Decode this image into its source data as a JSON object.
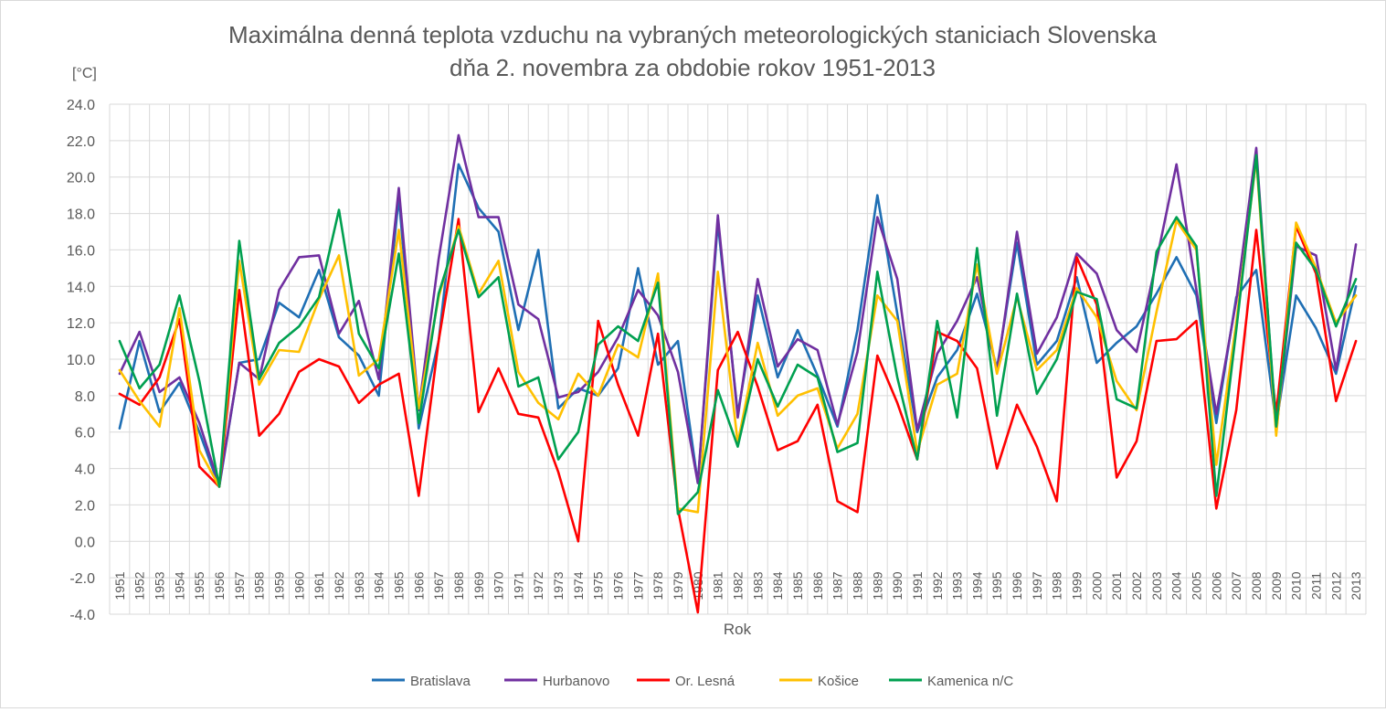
{
  "chart_data": {
    "type": "line",
    "title_line1": "Maximálna denná teplota vzduchu na vybraných meteorologických staniciach Slovenska",
    "title_line2": "dňa 2. novembra za obdobie rokov 1951-2013",
    "ylabel": "[°C]",
    "xlabel": "Rok",
    "ylim": [
      -4.0,
      24.0
    ],
    "ytick_step": 2.0,
    "grid": true,
    "legend_position": "bottom",
    "x": [
      1951,
      1952,
      1953,
      1954,
      1955,
      1956,
      1957,
      1958,
      1959,
      1960,
      1961,
      1962,
      1963,
      1964,
      1965,
      1966,
      1967,
      1968,
      1969,
      1970,
      1971,
      1972,
      1973,
      1974,
      1975,
      1976,
      1977,
      1978,
      1979,
      1980,
      1981,
      1982,
      1983,
      1984,
      1985,
      1986,
      1987,
      1988,
      1989,
      1990,
      1991,
      1992,
      1993,
      1994,
      1995,
      1996,
      1997,
      1998,
      1999,
      2000,
      2001,
      2002,
      2003,
      2004,
      2005,
      2006,
      2007,
      2008,
      2009,
      2010,
      2011,
      2012,
      2013
    ],
    "series": [
      {
        "name": "Bratislava",
        "color": "#1f6fb4",
        "values": [
          6.2,
          11.0,
          7.1,
          8.7,
          6.0,
          3.0,
          9.8,
          10.0,
          13.1,
          12.3,
          14.9,
          11.2,
          10.2,
          8.0,
          18.9,
          6.2,
          11.0,
          20.7,
          18.3,
          17.0,
          11.6,
          16.0,
          7.3,
          8.4,
          8.0,
          9.5,
          15.0,
          9.7,
          11.0,
          3.2,
          17.5,
          7.0,
          13.5,
          9.0,
          11.6,
          9.1,
          6.3,
          11.6,
          19.0,
          12.5,
          6.0,
          9.0,
          10.5,
          13.6,
          9.5,
          16.4,
          9.7,
          11.0,
          14.5,
          9.8,
          10.9,
          11.8,
          13.6,
          15.6,
          13.5,
          6.5,
          13.4,
          14.9,
          6.4,
          13.5,
          11.7,
          9.2,
          14.0
        ]
      },
      {
        "name": "Hurbanovo",
        "color": "#7030a0",
        "values": [
          9.2,
          11.5,
          8.2,
          9.0,
          6.5,
          3.1,
          9.8,
          8.9,
          13.8,
          15.6,
          15.7,
          11.4,
          13.2,
          8.9,
          19.4,
          7.2,
          15.5,
          22.3,
          17.8,
          17.8,
          13.0,
          12.2,
          7.9,
          8.2,
          9.3,
          11.2,
          13.8,
          12.4,
          9.3,
          3.2,
          17.9,
          6.8,
          14.4,
          9.6,
          11.1,
          10.5,
          6.4,
          10.4,
          17.8,
          14.4,
          6.1,
          10.3,
          12.1,
          14.5,
          9.3,
          17.0,
          10.3,
          12.3,
          15.8,
          14.7,
          11.6,
          10.4,
          15.4,
          20.7,
          13.8,
          7.0,
          13.2,
          21.6,
          6.0,
          16.2,
          15.7,
          9.4,
          16.3
        ]
      },
      {
        "name": "Or. Lesná",
        "color": "#ff0000",
        "values": [
          8.1,
          7.5,
          9.0,
          12.2,
          4.1,
          3.0,
          13.8,
          5.8,
          7.0,
          9.3,
          10.0,
          9.6,
          7.6,
          8.6,
          9.2,
          2.5,
          11.0,
          17.7,
          7.1,
          9.5,
          7.0,
          6.8,
          3.8,
          0.0,
          12.1,
          8.6,
          5.8,
          11.4,
          1.8,
          -3.9,
          9.4,
          11.5,
          8.5,
          5.0,
          5.5,
          7.5,
          2.2,
          1.6,
          10.2,
          7.6,
          4.5,
          11.5,
          11.0,
          9.5,
          4.0,
          7.5,
          5.2,
          2.2,
          15.6,
          13.0,
          3.5,
          5.5,
          11.0,
          11.1,
          12.1,
          1.8,
          7.2,
          17.1,
          7.0,
          17.3,
          14.7,
          7.7,
          11.0
        ]
      },
      {
        "name": "Košice",
        "color": "#ffc000",
        "values": [
          9.4,
          7.7,
          6.3,
          12.8,
          5.0,
          3.0,
          15.4,
          8.6,
          10.5,
          10.4,
          13.3,
          15.7,
          9.1,
          10.0,
          17.1,
          7.3,
          13.4,
          17.3,
          13.6,
          15.4,
          9.3,
          7.6,
          6.7,
          9.2,
          8.0,
          10.8,
          10.1,
          14.7,
          1.8,
          1.6,
          14.8,
          5.4,
          10.9,
          6.9,
          8.0,
          8.4,
          5.1,
          7.0,
          13.5,
          12.1,
          4.9,
          8.6,
          9.2,
          15.2,
          9.2,
          13.4,
          9.4,
          10.5,
          13.9,
          12.3,
          8.8,
          7.2,
          12.6,
          17.6,
          16.0,
          4.2,
          12.0,
          21.0,
          5.8,
          17.5,
          15.0,
          12.0,
          13.5
        ]
      },
      {
        "name": "Kamenica n/C",
        "color": "#00a050",
        "values": [
          11.0,
          8.4,
          9.7,
          13.5,
          8.8,
          3.0,
          16.5,
          8.9,
          10.9,
          11.8,
          13.4,
          18.2,
          11.4,
          9.5,
          15.8,
          6.5,
          13.6,
          17.1,
          13.4,
          14.5,
          8.5,
          9.0,
          4.5,
          6.0,
          10.8,
          11.8,
          11.0,
          14.2,
          1.5,
          2.7,
          8.3,
          5.2,
          10.0,
          7.4,
          9.7,
          9.0,
          4.9,
          5.4,
          14.8,
          9.0,
          4.5,
          12.1,
          6.8,
          16.1,
          6.9,
          13.6,
          8.1,
          10.0,
          13.7,
          13.3,
          7.8,
          7.3,
          15.9,
          17.8,
          16.2,
          2.5,
          11.6,
          21.2,
          6.3,
          16.4,
          14.9,
          11.8,
          14.4
        ]
      }
    ]
  }
}
